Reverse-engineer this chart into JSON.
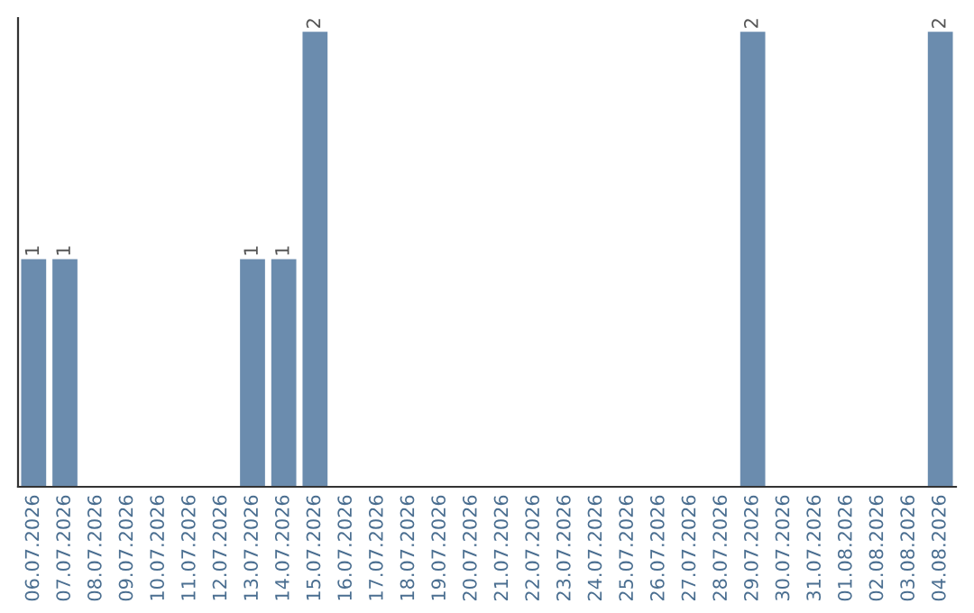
{
  "chart_data": {
    "type": "bar",
    "categories": [
      "06.07.2026",
      "07.07.2026",
      "08.07.2026",
      "09.07.2026",
      "10.07.2026",
      "11.07.2026",
      "12.07.2026",
      "13.07.2026",
      "14.07.2026",
      "15.07.2026",
      "16.07.2026",
      "17.07.2026",
      "18.07.2026",
      "19.07.2026",
      "20.07.2026",
      "21.07.2026",
      "22.07.2026",
      "23.07.2026",
      "24.07.2026",
      "25.07.2026",
      "26.07.2026",
      "27.07.2026",
      "28.07.2026",
      "29.07.2026",
      "30.07.2026",
      "31.07.2026",
      "01.08.2026",
      "02.08.2026",
      "03.08.2026",
      "04.08.2026"
    ],
    "values": [
      1,
      1,
      0,
      0,
      0,
      0,
      0,
      1,
      1,
      2,
      0,
      0,
      0,
      0,
      0,
      0,
      0,
      0,
      0,
      0,
      0,
      0,
      0,
      2,
      0,
      0,
      0,
      0,
      0,
      2
    ],
    "value_labels": [
      "1",
      "1",
      null,
      null,
      null,
      null,
      null,
      "1",
      "1",
      "2",
      null,
      null,
      null,
      null,
      null,
      null,
      null,
      null,
      null,
      null,
      null,
      null,
      null,
      "2",
      null,
      null,
      null,
      null,
      null,
      "2"
    ],
    "color": "#6b8cae",
    "tick_labels": "x",
    "grid": false,
    "legend": false
  }
}
